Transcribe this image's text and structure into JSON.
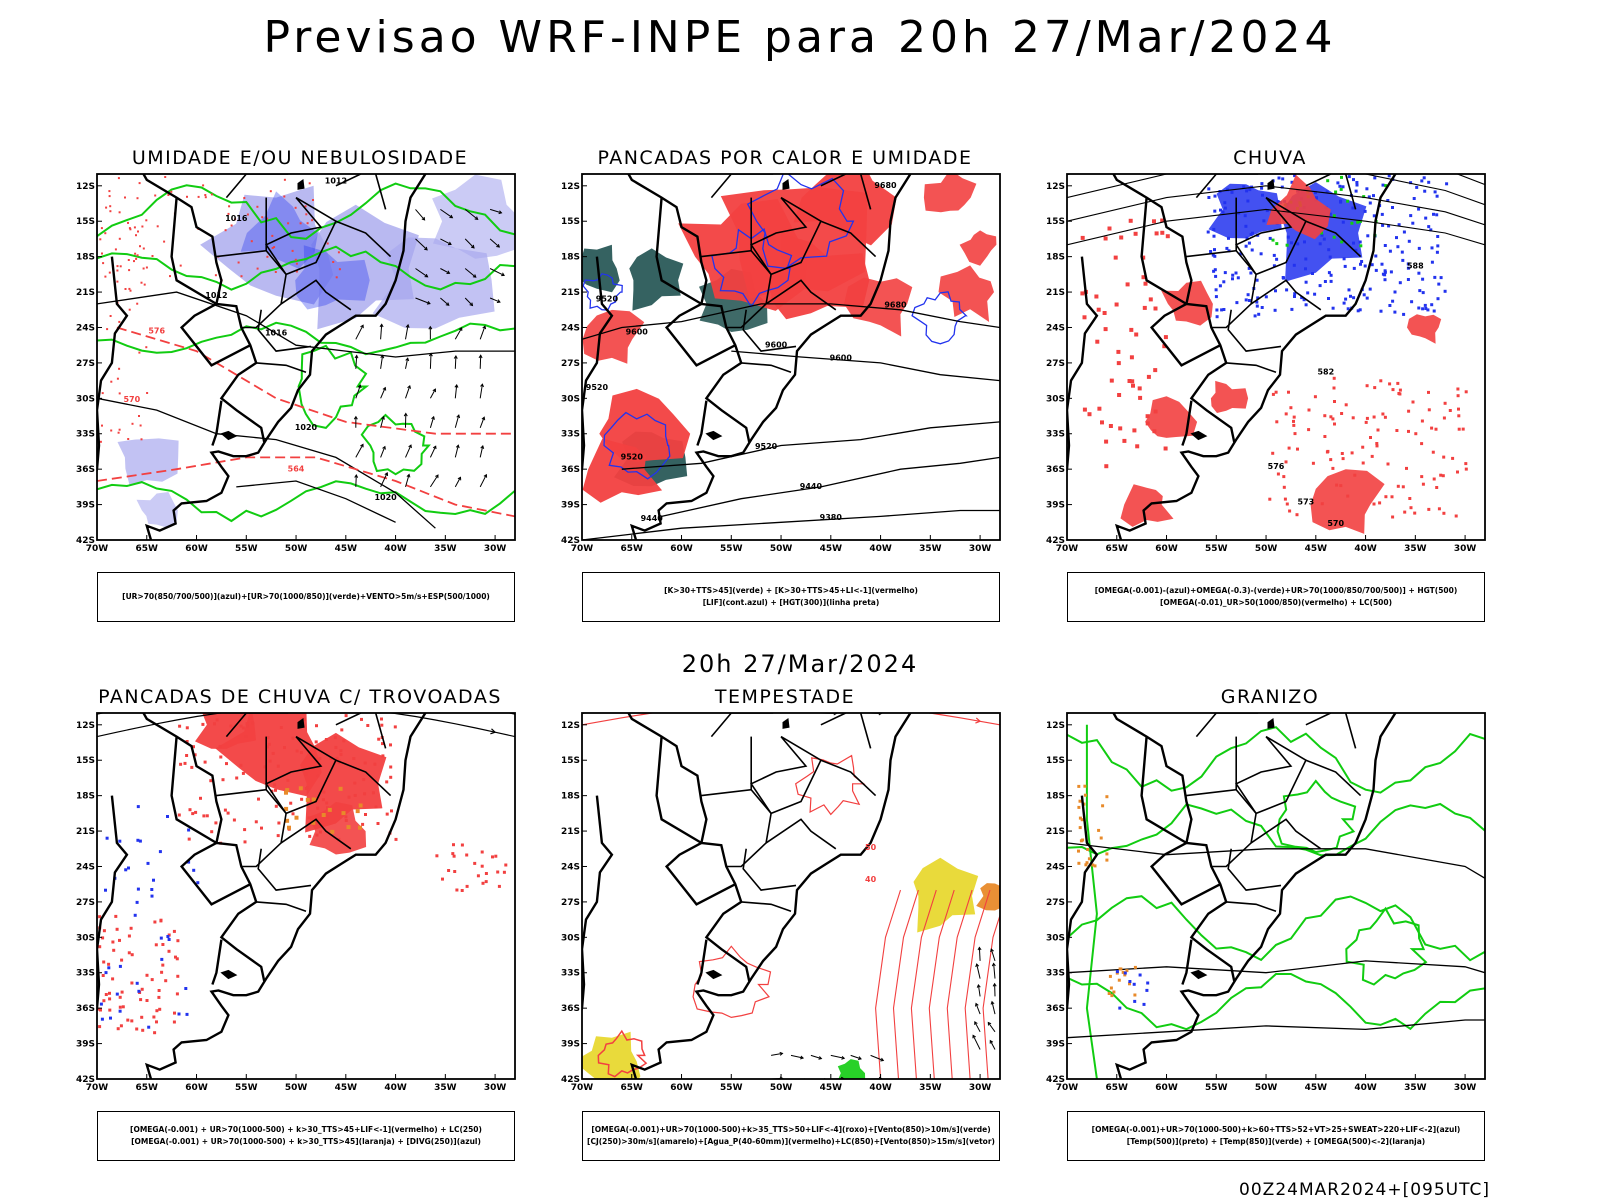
{
  "title": "Previsao WRF-INPE  para 20h 27/Mar/2024",
  "mid_title": "20h 27/Mar/2024",
  "footer": "00Z24MAR2024+[095UTC]",
  "lat_ticks": [
    "12S",
    "15S",
    "18S",
    "21S",
    "24S",
    "27S",
    "30S",
    "33S",
    "36S",
    "39S",
    "42S"
  ],
  "lon_ticks": [
    "70W",
    "65W",
    "60W",
    "55W",
    "50W",
    "45W",
    "40W",
    "35W",
    "30W"
  ],
  "panels": [
    {
      "title": "UMIDADE E/OU NEBULOSIDADE",
      "legend": [
        "[UR>70(850/700/500)](azul)+[UR>70(1000/850)](verde)+VENTO>5m/s+ESP(500/1000)"
      ],
      "contour_labels": [
        "1012",
        "1016",
        "1020",
        "576",
        "570",
        "564"
      ]
    },
    {
      "title": "PANCADAS POR CALOR E UMIDADE",
      "legend": [
        "[K>30+TTS>45](verde) + [K>30+TTS>45+LI<-1](vermelho)",
        "[LIF](cont.azul) + [HGT(300)](linha preta)"
      ],
      "contour_labels": [
        "9680",
        "9600",
        "9520",
        "9440",
        "9380"
      ]
    },
    {
      "title": "CHUVA",
      "legend": [
        "[OMEGA(-0.001)-(azul)+OMEGA(-0.3)-(verde)+UR>70(1000/850/700/500)] + HGT(500)",
        "[OMEGA(-0.01)_UR>50(1000/850)(vermelho) + LC(500)"
      ],
      "contour_labels": [
        "588",
        "582",
        "576",
        "573",
        "570"
      ]
    },
    {
      "title": "PANCADAS DE CHUVA C/ TROVOADAS",
      "legend": [
        "[OMEGA(-0.001) + UR>70(1000-500) + k>30_TTS>45+LIF<-1](vermelho) + LC(250)",
        "[OMEGA(-0.001) + UR>70(1000-500) + k>30_TTS>45](laranja) + [DIVG(250)](azul)"
      ],
      "contour_labels": []
    },
    {
      "title": "TEMPESTADE",
      "legend": [
        "[OMEGA(-0.001)+UR>70(1000-500)+k>35_TTS>50+LIF<-4](roxo)+[Vento(850)>10m/s](verde)",
        "[CJ(250)>30m/s](amarelo)+[Agua_P(40-60mm)](vermelho)+LC(850)+[Vento(850)>15m/s](vetor)"
      ],
      "contour_labels": [
        "50",
        "40"
      ]
    },
    {
      "title": "GRANIZO",
      "legend": [
        "[OMEGA(-0.001)+UR>70(1000-500)+k>60+TTS>52+VT>25+SWEAT>220+LIF<-2](azul)",
        "[Temp(500)](preto) + [Temp(850)](verde) + [OMEGA(500)<-2](laranja)"
      ],
      "contour_labels": []
    }
  ],
  "colors": {
    "red": "#f24040",
    "blue": "#2233ee",
    "green": "#11cc11",
    "lavender": "#a8a8ee",
    "teal": "#2a5a58",
    "yellow": "#e8d830",
    "orange": "#e88a2a"
  }
}
